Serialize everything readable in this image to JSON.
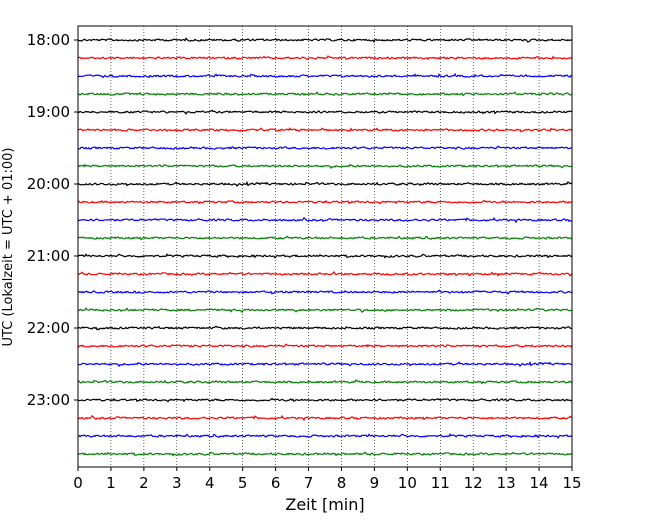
{
  "chart_data": {
    "type": "line",
    "title": "",
    "xlabel": "Zeit  [min]",
    "ylabel": "UTC (Lokalzeit = UTC + 01:00)",
    "xlim": [
      0,
      15
    ],
    "x_ticks": [
      "0",
      "1",
      "2",
      "3",
      "4",
      "5",
      "6",
      "7",
      "8",
      "9",
      "10",
      "11",
      "12",
      "13",
      "14",
      "15"
    ],
    "y_ticks": [
      "18:00",
      "19:00",
      "20:00",
      "21:00",
      "22:00",
      "23:00"
    ],
    "grid": "vertical dotted",
    "trace_interval_minutes": 15,
    "first_trace": "18:00",
    "trace_count": 24,
    "trace_colors": [
      "#000000",
      "#ff0000",
      "#0000ff",
      "#008000"
    ],
    "series": [
      {
        "start": "18:00",
        "color": "#000000"
      },
      {
        "start": "18:15",
        "color": "#ff0000"
      },
      {
        "start": "18:30",
        "color": "#0000ff"
      },
      {
        "start": "18:45",
        "color": "#008000"
      },
      {
        "start": "19:00",
        "color": "#000000"
      },
      {
        "start": "19:15",
        "color": "#ff0000"
      },
      {
        "start": "19:30",
        "color": "#0000ff"
      },
      {
        "start": "19:45",
        "color": "#008000"
      },
      {
        "start": "20:00",
        "color": "#000000"
      },
      {
        "start": "20:15",
        "color": "#ff0000"
      },
      {
        "start": "20:30",
        "color": "#0000ff"
      },
      {
        "start": "20:45",
        "color": "#008000"
      },
      {
        "start": "21:00",
        "color": "#000000"
      },
      {
        "start": "21:15",
        "color": "#ff0000"
      },
      {
        "start": "21:30",
        "color": "#0000ff"
      },
      {
        "start": "21:45",
        "color": "#008000"
      },
      {
        "start": "22:00",
        "color": "#000000"
      },
      {
        "start": "22:15",
        "color": "#ff0000"
      },
      {
        "start": "22:30",
        "color": "#0000ff"
      },
      {
        "start": "22:45",
        "color": "#008000"
      },
      {
        "start": "23:00",
        "color": "#000000"
      },
      {
        "start": "23:15",
        "color": "#ff0000"
      },
      {
        "start": "23:30",
        "color": "#0000ff"
      },
      {
        "start": "23:45",
        "color": "#008000"
      }
    ]
  }
}
